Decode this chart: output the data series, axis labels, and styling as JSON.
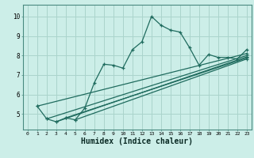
{
  "bg_color": "#cceee8",
  "line_color": "#1f6b5e",
  "grid_color": "#aad4cc",
  "xlabel": "Humidex (Indice chaleur)",
  "xlim": [
    -0.5,
    23.5
  ],
  "ylim": [
    4.2,
    10.6
  ],
  "yticks": [
    5,
    6,
    7,
    8,
    9,
    10
  ],
  "xticks": [
    0,
    1,
    2,
    3,
    4,
    5,
    6,
    7,
    8,
    9,
    10,
    11,
    12,
    13,
    14,
    15,
    16,
    17,
    18,
    19,
    20,
    21,
    22,
    23
  ],
  "main_series": [
    [
      1,
      5.4
    ],
    [
      2,
      4.75
    ],
    [
      3,
      4.6
    ],
    [
      4,
      4.8
    ],
    [
      5,
      4.7
    ],
    [
      6,
      5.3
    ],
    [
      7,
      6.6
    ],
    [
      8,
      7.55
    ],
    [
      9,
      7.5
    ],
    [
      10,
      7.35
    ],
    [
      11,
      8.3
    ],
    [
      12,
      8.7
    ],
    [
      13,
      10.0
    ],
    [
      14,
      9.55
    ],
    [
      15,
      9.3
    ],
    [
      16,
      9.2
    ],
    [
      17,
      8.4
    ],
    [
      18,
      7.5
    ],
    [
      19,
      8.05
    ],
    [
      20,
      7.9
    ],
    [
      21,
      7.9
    ],
    [
      22,
      7.82
    ],
    [
      23,
      8.3
    ]
  ],
  "linear_lines": [
    [
      [
        1,
        5.4
      ],
      [
        23,
        8.1
      ]
    ],
    [
      [
        2,
        4.75
      ],
      [
        23,
        8.0
      ]
    ],
    [
      [
        3,
        4.6
      ],
      [
        23,
        7.93
      ]
    ],
    [
      [
        4,
        4.8
      ],
      [
        23,
        7.87
      ]
    ],
    [
      [
        5,
        4.7
      ],
      [
        23,
        7.82
      ]
    ]
  ]
}
